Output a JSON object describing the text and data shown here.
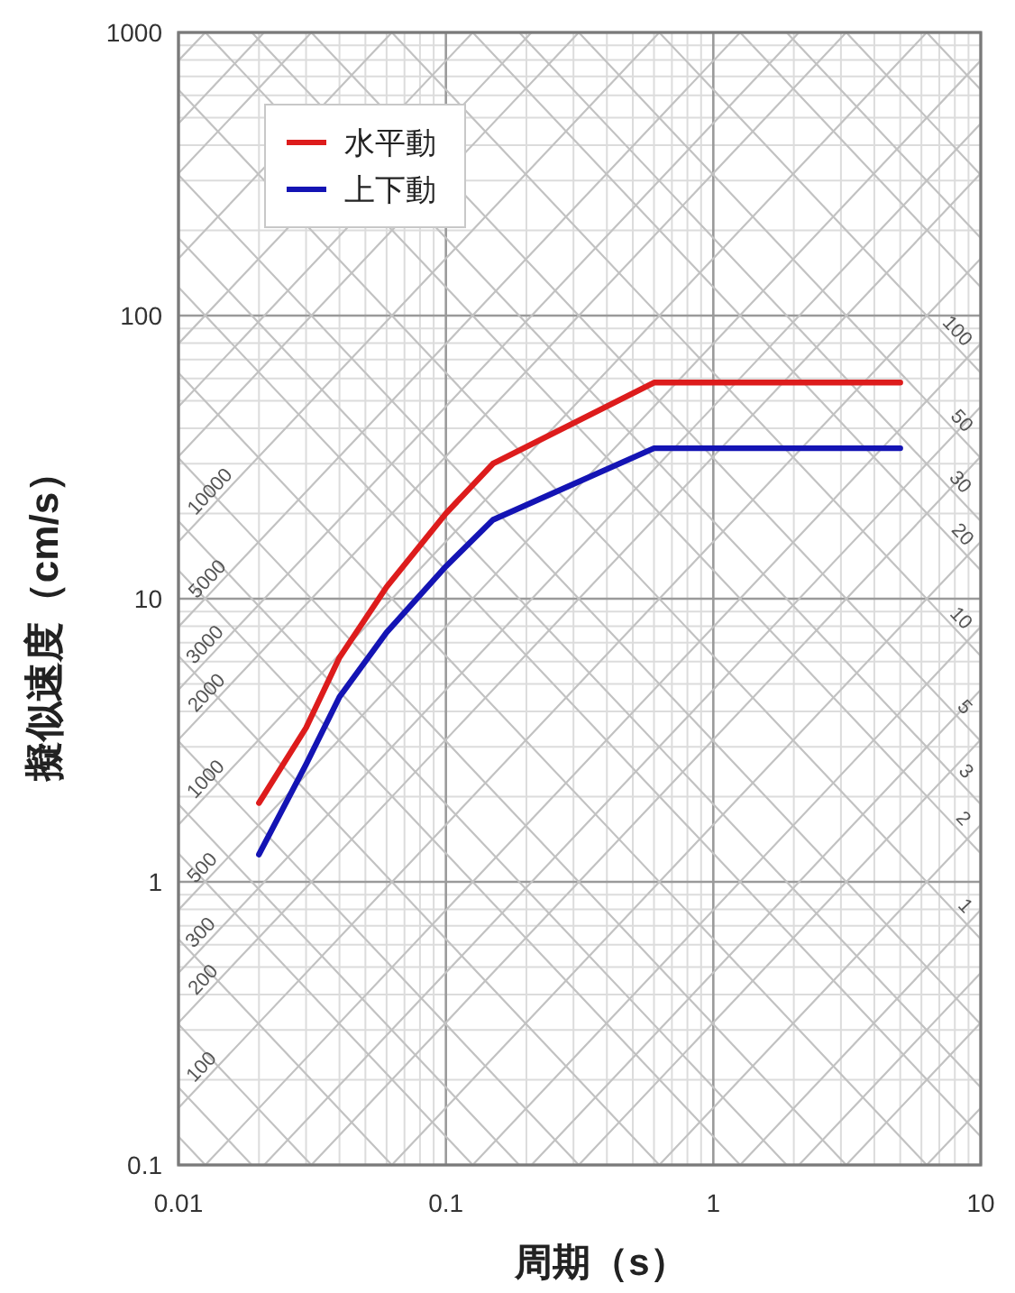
{
  "chart_data": {
    "type": "line",
    "xlabel": "周期（s）",
    "ylabel": "擬似速度（cm/s）",
    "log": "xy",
    "xlim": [
      0.01,
      10
    ],
    "ylim": [
      0.1,
      1000
    ],
    "xticks": [
      0.01,
      {
        "value": 0.02,
        "label": null
      },
      {
        "value": 0.03,
        "label": null
      },
      {
        "value": 0.04,
        "label": null
      },
      {
        "value": 0.05,
        "label": null
      },
      {
        "value": 0.06,
        "label": null
      },
      {
        "value": 0.07,
        "label": null
      },
      {
        "value": 0.08,
        "label": null
      },
      {
        "value": 0.09,
        "label": null
      },
      0.1,
      {
        "value": 0.2,
        "label": null
      },
      {
        "value": 0.3,
        "label": null
      },
      {
        "value": 0.4,
        "label": null
      },
      {
        "value": 0.5,
        "label": null
      },
      {
        "value": 0.6,
        "label": null
      },
      {
        "value": 0.7,
        "label": null
      },
      {
        "value": 0.8,
        "label": null
      },
      {
        "value": 0.9,
        "label": null
      },
      1,
      {
        "value": 2,
        "label": null
      },
      {
        "value": 3,
        "label": null
      },
      {
        "value": 4,
        "label": null
      },
      {
        "value": 5,
        "label": null
      },
      {
        "value": 6,
        "label": null
      },
      {
        "value": 7,
        "label": null
      },
      {
        "value": 8,
        "label": null
      },
      {
        "value": 9,
        "label": null
      },
      10
    ],
    "yticks": [
      0.1,
      {
        "value": 0.2,
        "label": null
      },
      {
        "value": 0.3,
        "label": null
      },
      {
        "value": 0.4,
        "label": null
      },
      {
        "value": 0.5,
        "label": null
      },
      {
        "value": 0.6,
        "label": null
      },
      {
        "value": 0.7,
        "label": null
      },
      {
        "value": 0.8,
        "label": null
      },
      {
        "value": 0.9,
        "label": null
      },
      1,
      {
        "value": 2,
        "label": null
      },
      {
        "value": 3,
        "label": null
      },
      {
        "value": 4,
        "label": null
      },
      {
        "value": 5,
        "label": null
      },
      {
        "value": 6,
        "label": null
      },
      {
        "value": 7,
        "label": null
      },
      {
        "value": 8,
        "label": null
      },
      {
        "value": 9,
        "label": null
      },
      10,
      {
        "value": 20,
        "label": null
      },
      {
        "value": 30,
        "label": null
      },
      {
        "value": 40,
        "label": null
      },
      {
        "value": 50,
        "label": null
      },
      {
        "value": 60,
        "label": null
      },
      {
        "value": 70,
        "label": null
      },
      {
        "value": 80,
        "label": null
      },
      {
        "value": 90,
        "label": null
      },
      100,
      {
        "value": 200,
        "label": null
      },
      {
        "value": 300,
        "label": null
      },
      {
        "value": 400,
        "label": null
      },
      {
        "value": 500,
        "label": null
      },
      {
        "value": 600,
        "label": null
      },
      {
        "value": 700,
        "label": null
      },
      {
        "value": 800,
        "label": null
      },
      {
        "value": 900,
        "label": null
      },
      1000
    ],
    "grid": true,
    "legend": "top left",
    "series": [
      {
        "color": "#c2c2c2",
        "x": [
          6.28,
          10
        ],
        "values": [
          0.1,
          0.159
        ]
      },
      {
        "color": "#c2c2c2",
        "x": [
          3.14,
          10
        ],
        "values": [
          0.1,
          0.318
        ]
      },
      {
        "color": "#c2c2c2",
        "x": [
          2.09,
          10
        ],
        "values": [
          0.1,
          0.477
        ]
      },
      {
        "color": "#c2c2c2",
        "x": [
          1.26,
          10
        ],
        "values": [
          0.1,
          0.796
        ]
      },
      {
        "color": "#c2c2c2",
        "x": [
          0.628,
          10
        ],
        "values": [
          0.1,
          1.59
        ]
      },
      {
        "color": "#c2c2c2",
        "x": [
          0.314,
          10
        ],
        "values": [
          0.1,
          3.18
        ]
      },
      {
        "color": "#c2c2c2",
        "x": [
          0.209,
          10
        ],
        "values": [
          0.1,
          4.77
        ]
      },
      {
        "color": "#c2c2c2",
        "x": [
          0.126,
          10
        ],
        "values": [
          0.1,
          7.96
        ]
      },
      {
        "color": "#c2c2c2",
        "x": [
          0.0628,
          10
        ],
        "values": [
          0.1,
          15.9
        ]
      },
      {
        "color": "#c2c2c2",
        "x": [
          0.0314,
          10
        ],
        "values": [
          0.1,
          31.8
        ]
      },
      {
        "color": "#c2c2c2",
        "x": [
          0.0209,
          10
        ],
        "values": [
          0.1,
          47.7
        ]
      },
      {
        "color": "#c2c2c2",
        "x": [
          0.0126,
          10
        ],
        "values": [
          0.1,
          79.6
        ]
      },
      {
        "color": "#c2c2c2",
        "x": [
          0.01,
          10
        ],
        "values": [
          0.159,
          159
        ]
      },
      {
        "color": "#c2c2c2",
        "x": [
          0.01,
          10
        ],
        "values": [
          0.318,
          318
        ]
      },
      {
        "color": "#c2c2c2",
        "x": [
          0.01,
          10
        ],
        "values": [
          0.477,
          477
        ]
      },
      {
        "color": "#c2c2c2",
        "x": [
          0.01,
          10
        ],
        "values": [
          0.796,
          796
        ]
      },
      {
        "color": "#c2c2c2",
        "x": [
          0.01,
          6.28
        ],
        "values": [
          1.59,
          1000
        ]
      },
      {
        "color": "#c2c2c2",
        "x": [
          0.01,
          3.14
        ],
        "values": [
          3.18,
          1000
        ]
      },
      {
        "color": "#c2c2c2",
        "x": [
          0.01,
          2.09
        ],
        "values": [
          4.77,
          1000
        ]
      },
      {
        "color": "#c2c2c2",
        "x": [
          0.01,
          1.26
        ],
        "values": [
          7.96,
          1000
        ]
      },
      {
        "color": "#c2c2c2",
        "x": [
          0.01,
          0.628
        ],
        "values": [
          15.9,
          1000
        ]
      },
      {
        "color": "#c2c2c2",
        "x": [
          0.01,
          0.314
        ],
        "values": [
          31.8,
          1000
        ]
      },
      {
        "color": "#c2c2c2",
        "x": [
          0.01,
          0.209
        ],
        "values": [
          47.7,
          1000
        ]
      },
      {
        "color": "#c2c2c2",
        "x": [
          0.01,
          0.126
        ],
        "values": [
          79.6,
          1000
        ]
      },
      {
        "color": "#c2c2c2",
        "x": [
          0.01,
          0.0628
        ],
        "values": [
          159,
          1000
        ]
      },
      {
        "color": "#c2c2c2",
        "x": [
          0.01,
          0.0314
        ],
        "values": [
          318,
          1000
        ]
      },
      {
        "color": "#c2c2c2",
        "x": [
          0.01,
          0.0209
        ],
        "values": [
          477,
          1000
        ]
      },
      {
        "color": "#c2c2c2",
        "x": [
          0.01,
          0.0126
        ],
        "values": [
          796,
          1000
        ]
      },
      {
        "color": "#c2c2c2",
        "x": [
          0.01,
          0.0126
        ],
        "values": [
          0.126,
          0.1
        ]
      },
      {
        "color": "#c2c2c2",
        "x": [
          0.01,
          0.0188
        ],
        "values": [
          0.188,
          0.1
        ]
      },
      {
        "color": "#c2c2c2",
        "x": [
          0.01,
          0.0314
        ],
        "values": [
          0.314,
          0.1
        ]
      },
      {
        "color": "#c2c2c2",
        "x": [
          0.01,
          0.0628
        ],
        "values": [
          0.628,
          0.1
        ]
      },
      {
        "color": "#c2c2c2",
        "x": [
          0.01,
          0.126
        ],
        "values": [
          1.26,
          0.1
        ]
      },
      {
        "color": "#c2c2c2",
        "x": [
          0.01,
          0.188
        ],
        "values": [
          1.88,
          0.1
        ]
      },
      {
        "color": "#c2c2c2",
        "x": [
          0.01,
          0.314
        ],
        "values": [
          3.14,
          0.1
        ]
      },
      {
        "color": "#c2c2c2",
        "x": [
          0.01,
          0.628
        ],
        "values": [
          6.28,
          0.1
        ]
      },
      {
        "color": "#c2c2c2",
        "x": [
          0.01,
          1.26
        ],
        "values": [
          12.6,
          0.1
        ]
      },
      {
        "color": "#c2c2c2",
        "x": [
          0.01,
          1.88
        ],
        "values": [
          18.8,
          0.1
        ]
      },
      {
        "color": "#c2c2c2",
        "x": [
          0.01,
          3.14
        ],
        "values": [
          31.4,
          0.1
        ]
      },
      {
        "color": "#c2c2c2",
        "x": [
          0.01,
          6.28
        ],
        "values": [
          62.8,
          0.1
        ]
      },
      {
        "color": "#c2c2c2",
        "x": [
          0.01,
          10
        ],
        "values": [
          126,
          0.126
        ]
      },
      {
        "color": "#c2c2c2",
        "x": [
          0.01,
          10
        ],
        "values": [
          188,
          0.188
        ]
      },
      {
        "color": "#c2c2c2",
        "x": [
          0.01,
          10
        ],
        "values": [
          314,
          0.314
        ]
      },
      {
        "color": "#c2c2c2",
        "x": [
          0.01,
          10
        ],
        "values": [
          628,
          0.628
        ]
      },
      {
        "color": "#c2c2c2",
        "x": [
          0.0126,
          10
        ],
        "values": [
          1000,
          1.26
        ]
      },
      {
        "color": "#c2c2c2",
        "x": [
          0.0188,
          10
        ],
        "values": [
          1000,
          1.88
        ]
      },
      {
        "color": "#c2c2c2",
        "x": [
          0.0314,
          10
        ],
        "values": [
          1000,
          3.14
        ]
      },
      {
        "color": "#c2c2c2",
        "x": [
          0.0628,
          10
        ],
        "values": [
          1000,
          6.28
        ]
      },
      {
        "color": "#c2c2c2",
        "x": [
          0.126,
          10
        ],
        "values": [
          1000,
          12.6
        ]
      },
      {
        "color": "#c2c2c2",
        "x": [
          0.188,
          10
        ],
        "values": [
          1000,
          18.8
        ]
      },
      {
        "color": "#c2c2c2",
        "x": [
          0.314,
          10
        ],
        "values": [
          1000,
          31.4
        ]
      },
      {
        "color": "#c2c2c2",
        "x": [
          0.628,
          10
        ],
        "values": [
          1000,
          62.8
        ]
      },
      {
        "color": "#c2c2c2",
        "x": [
          1.26,
          10
        ],
        "values": [
          1000,
          126
        ]
      },
      {
        "color": "#c2c2c2",
        "x": [
          1.88,
          10
        ],
        "values": [
          1000,
          188
        ]
      },
      {
        "color": "#c2c2c2",
        "x": [
          3.14,
          10
        ],
        "values": [
          1000,
          314
        ]
      },
      {
        "color": "#c2c2c2",
        "x": [
          6.28,
          10
        ],
        "values": [
          1000,
          628
        ]
      },
      {
        "name": "水平動",
        "color": "#dd1c1c",
        "x": [
          0.02,
          0.03,
          0.04,
          0.06,
          0.1,
          0.15,
          0.6,
          5
        ],
        "values": [
          1.9,
          3.5,
          6.2,
          11,
          20,
          30,
          58,
          58
        ]
      },
      {
        "name": "上下動",
        "color": "#1414b4",
        "x": [
          0.02,
          0.03,
          0.04,
          0.06,
          0.1,
          0.15,
          0.6,
          5
        ],
        "values": [
          1.25,
          2.6,
          4.5,
          7.6,
          13,
          19,
          34,
          34
        ]
      }
    ],
    "annotations": [
      {
        "text": "10000",
        "x": 0.0141,
        "y": 22.4
      },
      {
        "text": "5000",
        "x": 0.0138,
        "y": 11
      },
      {
        "text": "3000",
        "x": 0.0135,
        "y": 6.45
      },
      {
        "text": "2000",
        "x": 0.0137,
        "y": 4.36
      },
      {
        "text": "1000",
        "x": 0.0136,
        "y": 2.16
      },
      {
        "text": "500",
        "x": 0.0132,
        "y": 1.05
      },
      {
        "text": "300",
        "x": 0.013,
        "y": 0.621
      },
      {
        "text": "200",
        "x": 0.0133,
        "y": 0.423
      },
      {
        "text": "100",
        "x": 0.0131,
        "y": 0.208
      },
      {
        "text": "100",
        "x": 7.6,
        "y": 82.7
      },
      {
        "text": "50",
        "x": 7.9,
        "y": 39.8
      },
      {
        "text": "30",
        "x": 7.8,
        "y": 24.2
      },
      {
        "text": "20",
        "x": 7.95,
        "y": 15.8
      },
      {
        "text": "10",
        "x": 7.85,
        "y": 8
      },
      {
        "text": "5",
        "x": 8.1,
        "y": 3.88
      },
      {
        "text": "3",
        "x": 8.2,
        "y": 2.3
      },
      {
        "text": "2",
        "x": 8,
        "y": 1.57
      },
      {
        "text": "1",
        "x": 8.15,
        "y": 0.771
      }
    ]
  }
}
